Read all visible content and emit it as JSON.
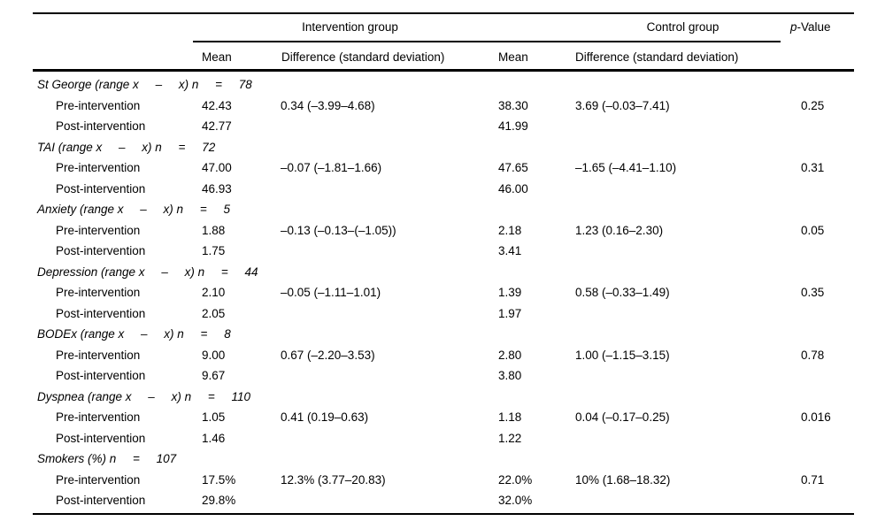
{
  "table": {
    "headers": {
      "intervention_group": "Intervention group",
      "control_group": "Control group",
      "p_value_italic": "p",
      "p_value_rest": "-Value",
      "mean_intervention": "Mean",
      "difference_intervention": "Difference (standard deviation)",
      "mean_control": "Mean",
      "difference_control": "Difference (standard deviation)"
    },
    "row_labels": {
      "pre": "Pre-intervention",
      "post": "Post-intervention"
    },
    "sections": [
      {
        "label": "St George (range x     –     x) n     =     78",
        "rows": [
          {
            "label": "Pre-intervention",
            "i_mean": "42.43",
            "i_diff": "0.34 (–3.99–4.68)",
            "c_mean": "38.30",
            "c_diff": "3.69 (–0.03–7.41)",
            "p": "0.25"
          },
          {
            "label": "Post-intervention",
            "i_mean": "42.77",
            "i_diff": "",
            "c_mean": "41.99",
            "c_diff": "",
            "p": ""
          }
        ]
      },
      {
        "label": "TAI (range x     –     x) n     =     72",
        "rows": [
          {
            "label": "Pre-intervention",
            "i_mean": "47.00",
            "i_diff": "–0.07 (–1.81–1.66)",
            "c_mean": "47.65",
            "c_diff": "–1.65 (–4.41–1.10)",
            "p": "0.31"
          },
          {
            "label": "Post-intervention",
            "i_mean": "46.93",
            "i_diff": "",
            "c_mean": "46.00",
            "c_diff": "",
            "p": ""
          }
        ]
      },
      {
        "label": "Anxiety (range x     –     x) n     =     5",
        "rows": [
          {
            "label": "Pre-intervention",
            "i_mean": "1.88",
            "i_diff": "–0.13 (–0.13–(–1.05))",
            "c_mean": "2.18",
            "c_diff": "1.23 (0.16–2.30)",
            "p": "0.05"
          },
          {
            "label": "Post-intervention",
            "i_mean": "1.75",
            "i_diff": "",
            "c_mean": "3.41",
            "c_diff": "",
            "p": ""
          }
        ]
      },
      {
        "label": "Depression (range x     –     x) n     =     44",
        "rows": [
          {
            "label": "Pre-intervention",
            "i_mean": "2.10",
            "i_diff": "–0.05 (–1.11–1.01)",
            "c_mean": "1.39",
            "c_diff": "0.58 (–0.33–1.49)",
            "p": "0.35"
          },
          {
            "label": "Post-intervention",
            "i_mean": "2.05",
            "i_diff": "",
            "c_mean": "1.97",
            "c_diff": "",
            "p": ""
          }
        ]
      },
      {
        "label": "BODEx (range x     –     x) n     =     8",
        "rows": [
          {
            "label": "Pre-intervention",
            "i_mean": "9.00",
            "i_diff": "0.67 (–2.20–3.53)",
            "c_mean": "2.80",
            "c_diff": "1.00 (–1.15–3.15)",
            "p": "0.78"
          },
          {
            "label": "Post-intervention",
            "i_mean": "9.67",
            "i_diff": "",
            "c_mean": "3.80",
            "c_diff": "",
            "p": ""
          }
        ]
      },
      {
        "label": "Dyspnea (range x     –     x) n     =     110",
        "rows": [
          {
            "label": "Pre-intervention",
            "i_mean": "1.05",
            "i_diff": "0.41 (0.19–0.63)",
            "c_mean": "1.18",
            "c_diff": "0.04 (–0.17–0.25)",
            "p": "0.016"
          },
          {
            "label": "Post-intervention",
            "i_mean": "1.46",
            "i_diff": "",
            "c_mean": "1.22",
            "c_diff": "",
            "p": ""
          }
        ]
      },
      {
        "label": "Smokers (%) n     =     107",
        "rows": [
          {
            "label": "Pre-intervention",
            "i_mean": "17.5%",
            "i_diff": "12.3% (3.77–20.83)",
            "c_mean": "22.0%",
            "c_diff": "10% (1.68–18.32)",
            "p": "0.71"
          },
          {
            "label": "Post-intervention",
            "i_mean": "29.8%",
            "i_diff": "",
            "c_mean": "32.0%",
            "c_diff": "",
            "p": ""
          }
        ]
      }
    ]
  }
}
